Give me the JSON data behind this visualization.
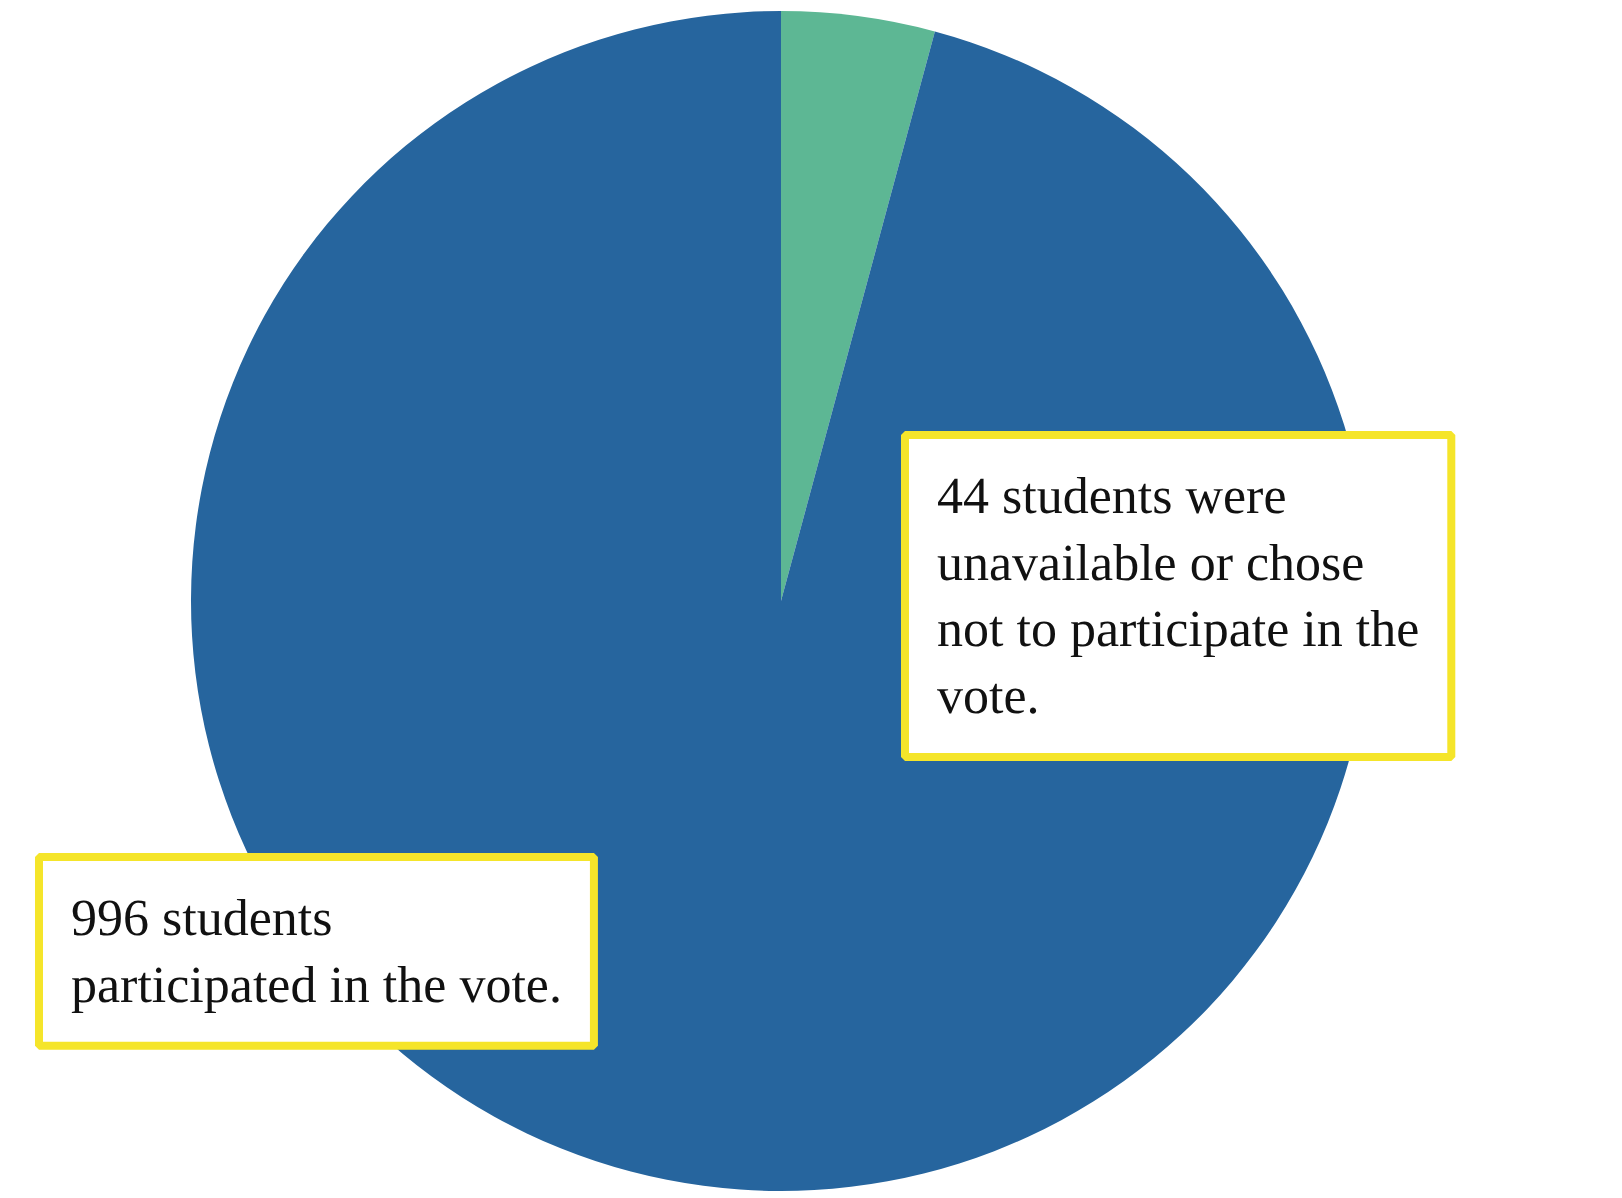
{
  "chart_data": {
    "type": "pie",
    "categories": [
      null,
      null
    ],
    "values": [
      4.2,
      95.8
    ],
    "colors": [
      "#5db794",
      "#26659e"
    ],
    "annotations": [
      "44 students were\nunavailable or chose\nnot to participate in the\nvote.",
      "996 students\nparticipated in the vote."
    ]
  }
}
